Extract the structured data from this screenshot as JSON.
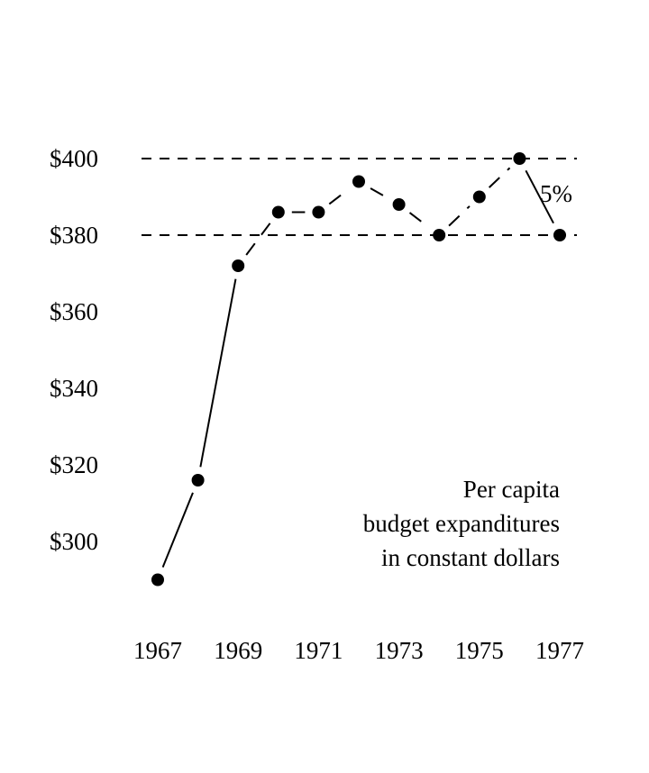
{
  "chart_data": {
    "type": "line",
    "title": "",
    "xlabel": "",
    "ylabel": "",
    "x": [
      1967,
      1968,
      1969,
      1970,
      1971,
      1972,
      1973,
      1974,
      1975,
      1976,
      1977
    ],
    "series": [
      {
        "values": [
          290,
          316,
          372,
          386,
          386,
          394,
          388,
          380,
          390,
          400,
          380
        ]
      }
    ],
    "xlim": [
      1967,
      1977
    ],
    "ylim": [
      290,
      400
    ],
    "x_ticks": [
      "1967",
      "1969",
      "1971",
      "1973",
      "1975",
      "1977"
    ],
    "y_ticks": [
      "$300",
      "$320",
      "$340",
      "$360",
      "$380",
      "$400"
    ],
    "reference_lines": [
      400,
      380
    ],
    "annotations": {
      "difference_label": "5%",
      "caption_lines": [
        "Per capita",
        "budget expanditures",
        "in constant dollars"
      ]
    },
    "grid": false,
    "legend": "none",
    "colors": {
      "ink": "#000000",
      "background": "#ffffff"
    },
    "line_styles": {
      "1967-1969": "solid",
      "1969-1976": "dashed",
      "1976-1977": "solid"
    }
  }
}
